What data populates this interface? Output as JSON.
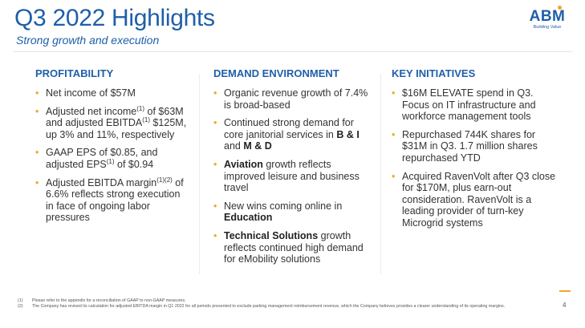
{
  "title": "Q3 2022 Highlights",
  "subtitle": "Strong growth and execution",
  "logo": {
    "name": "ABM",
    "tagline": "Building Value"
  },
  "colors": {
    "brand_blue": "#1f5fa8",
    "accent_orange": "#f5a623"
  },
  "columns": [
    {
      "heading": "PROFITABILITY",
      "bullets": [
        {
          "parts": [
            {
              "t": "Net income of $57M"
            }
          ]
        },
        {
          "parts": [
            {
              "t": "Adjusted net income"
            },
            {
              "t": "(1)",
              "sup": true
            },
            {
              "t": " of $63M and adjusted EBITDA"
            },
            {
              "t": "(1)",
              "sup": true
            },
            {
              "t": " $125M, up 3% and 11%, respectively"
            }
          ]
        },
        {
          "parts": [
            {
              "t": "GAAP EPS of $0.85, and adjusted EPS"
            },
            {
              "t": "(1)",
              "sup": true
            },
            {
              "t": " of $0.94"
            }
          ]
        },
        {
          "parts": [
            {
              "t": "Adjusted EBITDA margin"
            },
            {
              "t": "(1)(2)",
              "sup": true
            },
            {
              "t": " of 6.6% reflects strong execution in face of ongoing labor pressures"
            }
          ]
        }
      ]
    },
    {
      "heading": "DEMAND ENVIRONMENT",
      "bullets": [
        {
          "parts": [
            {
              "t": "Organic revenue growth of 7.4% is broad-based"
            }
          ]
        },
        {
          "parts": [
            {
              "t": "Continued strong demand for core janitorial services in "
            },
            {
              "t": "B & I",
              "bold": true
            },
            {
              "t": " and "
            },
            {
              "t": "M & D",
              "bold": true
            }
          ]
        },
        {
          "parts": [
            {
              "t": "Aviation",
              "bold": true
            },
            {
              "t": " growth reflects improved leisure and business travel"
            }
          ]
        },
        {
          "parts": [
            {
              "t": "New wins coming online in "
            },
            {
              "t": "Education",
              "bold": true
            }
          ]
        },
        {
          "parts": [
            {
              "t": "Technical Solutions",
              "bold": true
            },
            {
              "t": " growth reflects continued high demand for eMobility solutions"
            }
          ]
        }
      ]
    },
    {
      "heading": "KEY INITIATIVES",
      "bullets": [
        {
          "parts": [
            {
              "t": "$16M ELEVATE spend in Q3. Focus on IT infrastructure and workforce management tools"
            }
          ]
        },
        {
          "parts": [
            {
              "t": "Repurchased 744K shares for $31M in Q3. 1.7 million shares repurchased YTD"
            }
          ]
        },
        {
          "parts": [
            {
              "t": "Acquired RavenVolt after Q3 close for $170M, plus earn-out consideration. RavenVolt is a leading provider of turn-key Microgrid systems"
            }
          ]
        }
      ]
    }
  ],
  "footnotes": [
    {
      "num": "(1)",
      "text": "Please refer to the appendix for a reconciliation of GAAP to non-GAAP measures."
    },
    {
      "num": "(2)",
      "text": "The Company has revised its calculation for adjusted EBITDA margin in Q1 2022 for all periods presented to exclude parking management reimbursement revenue, which the Company believes provides a clearer understanding of its operating margins."
    }
  ],
  "page_number": "4"
}
